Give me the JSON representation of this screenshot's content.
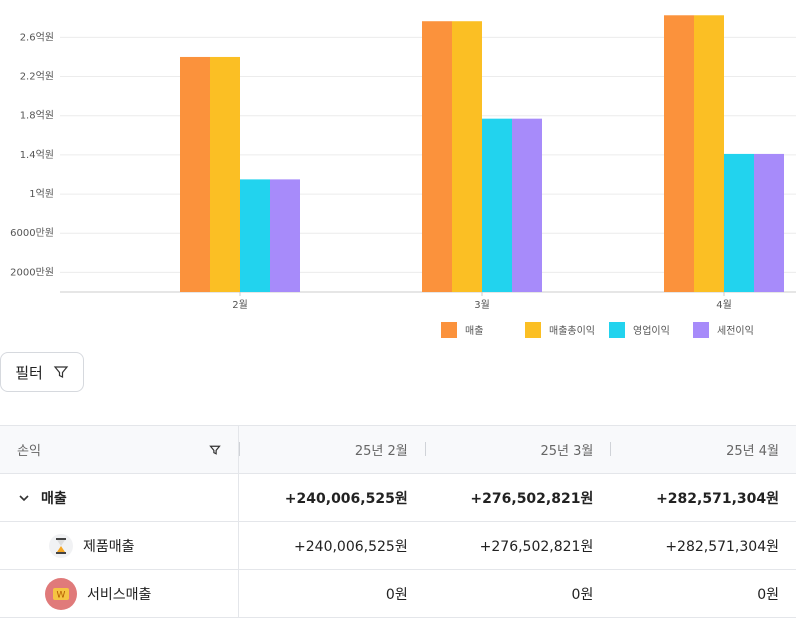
{
  "chart_data": {
    "type": "bar",
    "categories": [
      "2월",
      "3월",
      "4월"
    ],
    "series": [
      {
        "name": "매출",
        "color": "#fb923c",
        "values": [
          240006525,
          276502821,
          282571304
        ]
      },
      {
        "name": "매출총이익",
        "color": "#fbbf24",
        "values": [
          240006525,
          276502821,
          282571304
        ]
      },
      {
        "name": "영업이익",
        "color": "#22d3ee",
        "values": [
          115000000,
          177000000,
          141000000
        ]
      },
      {
        "name": "세전이익",
        "color": "#a78bfa",
        "values": [
          115000000,
          177000000,
          141000000
        ]
      }
    ],
    "ylim": [
      0,
      290000000
    ],
    "yticks": [
      {
        "value": 20000000,
        "label": "2000만원"
      },
      {
        "value": 60000000,
        "label": "6000만원"
      },
      {
        "value": 100000000,
        "label": "1억원"
      },
      {
        "value": 140000000,
        "label": "1.4억원"
      },
      {
        "value": 180000000,
        "label": "1.8억원"
      },
      {
        "value": 220000000,
        "label": "2.2억원"
      },
      {
        "value": 260000000,
        "label": "2.6억원"
      }
    ],
    "grid": true,
    "legend": "bottom"
  },
  "filter": {
    "label": "필터"
  },
  "table": {
    "header": [
      "손익",
      "25년 2월",
      "25년 3월",
      "25년 4월"
    ],
    "rows": [
      [
        "매출",
        "+240,006,525원",
        "+276,502,821원",
        "+282,571,304원"
      ],
      [
        "제품매출",
        "+240,006,525원",
        "+276,502,821원",
        "+282,571,304원"
      ],
      [
        "서비스매출",
        "0원",
        "0원",
        "0원"
      ]
    ]
  }
}
